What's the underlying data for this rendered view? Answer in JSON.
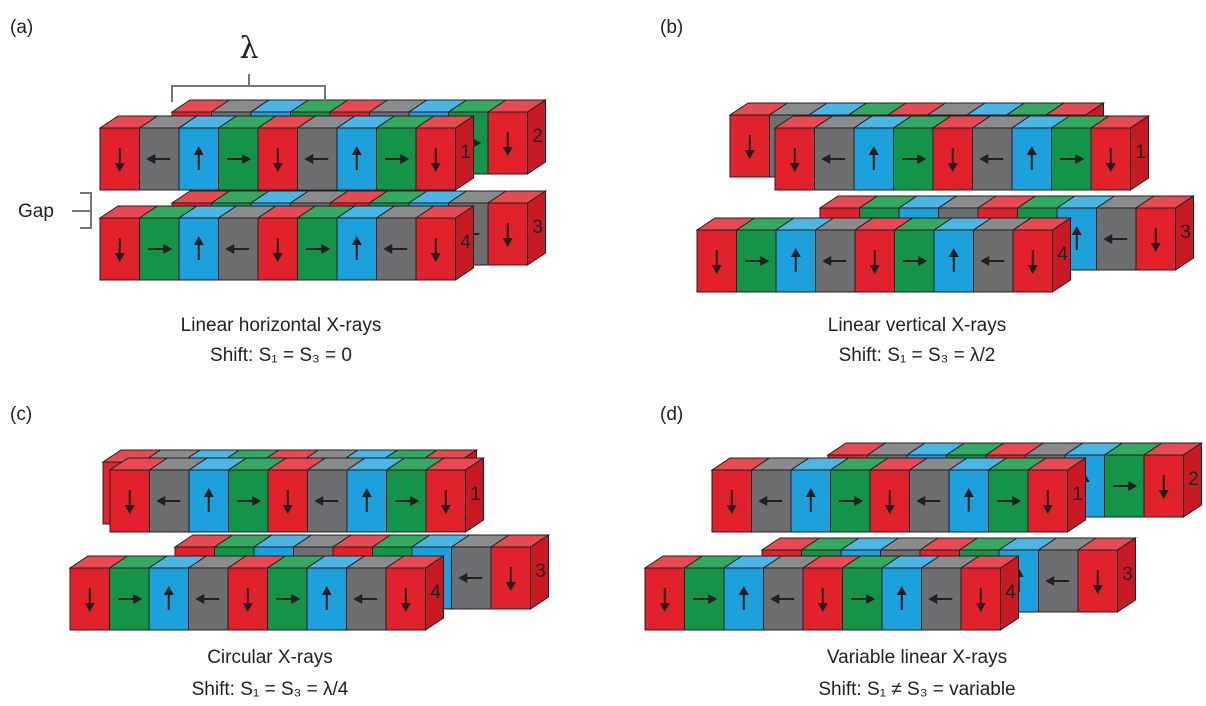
{
  "panels": [
    {
      "label": "(a)",
      "caption": "Linear horizontal X-rays",
      "shift": "Shift: S₁ = S₃ = 0",
      "row_labels": [
        "1",
        "2",
        "3",
        "4"
      ]
    },
    {
      "label": "(b)",
      "caption": "Linear vertical X-rays",
      "shift": "Shift: S₁ = S₃ = λ/2",
      "row_labels": [
        "1",
        "3",
        "4"
      ]
    },
    {
      "label": "(c)",
      "caption": "Circular X-rays",
      "shift": "Shift: S₁ = S₃ = λ/4",
      "row_labels": [
        "1",
        "3",
        "4"
      ]
    },
    {
      "label": "(d)",
      "caption": "Variable linear X-rays",
      "shift": "Shift: S₁ ≠ S₃ = variable",
      "row_labels": [
        "1",
        "2",
        "3",
        "4"
      ]
    }
  ],
  "lambda": "λ",
  "gap": "Gap"
}
